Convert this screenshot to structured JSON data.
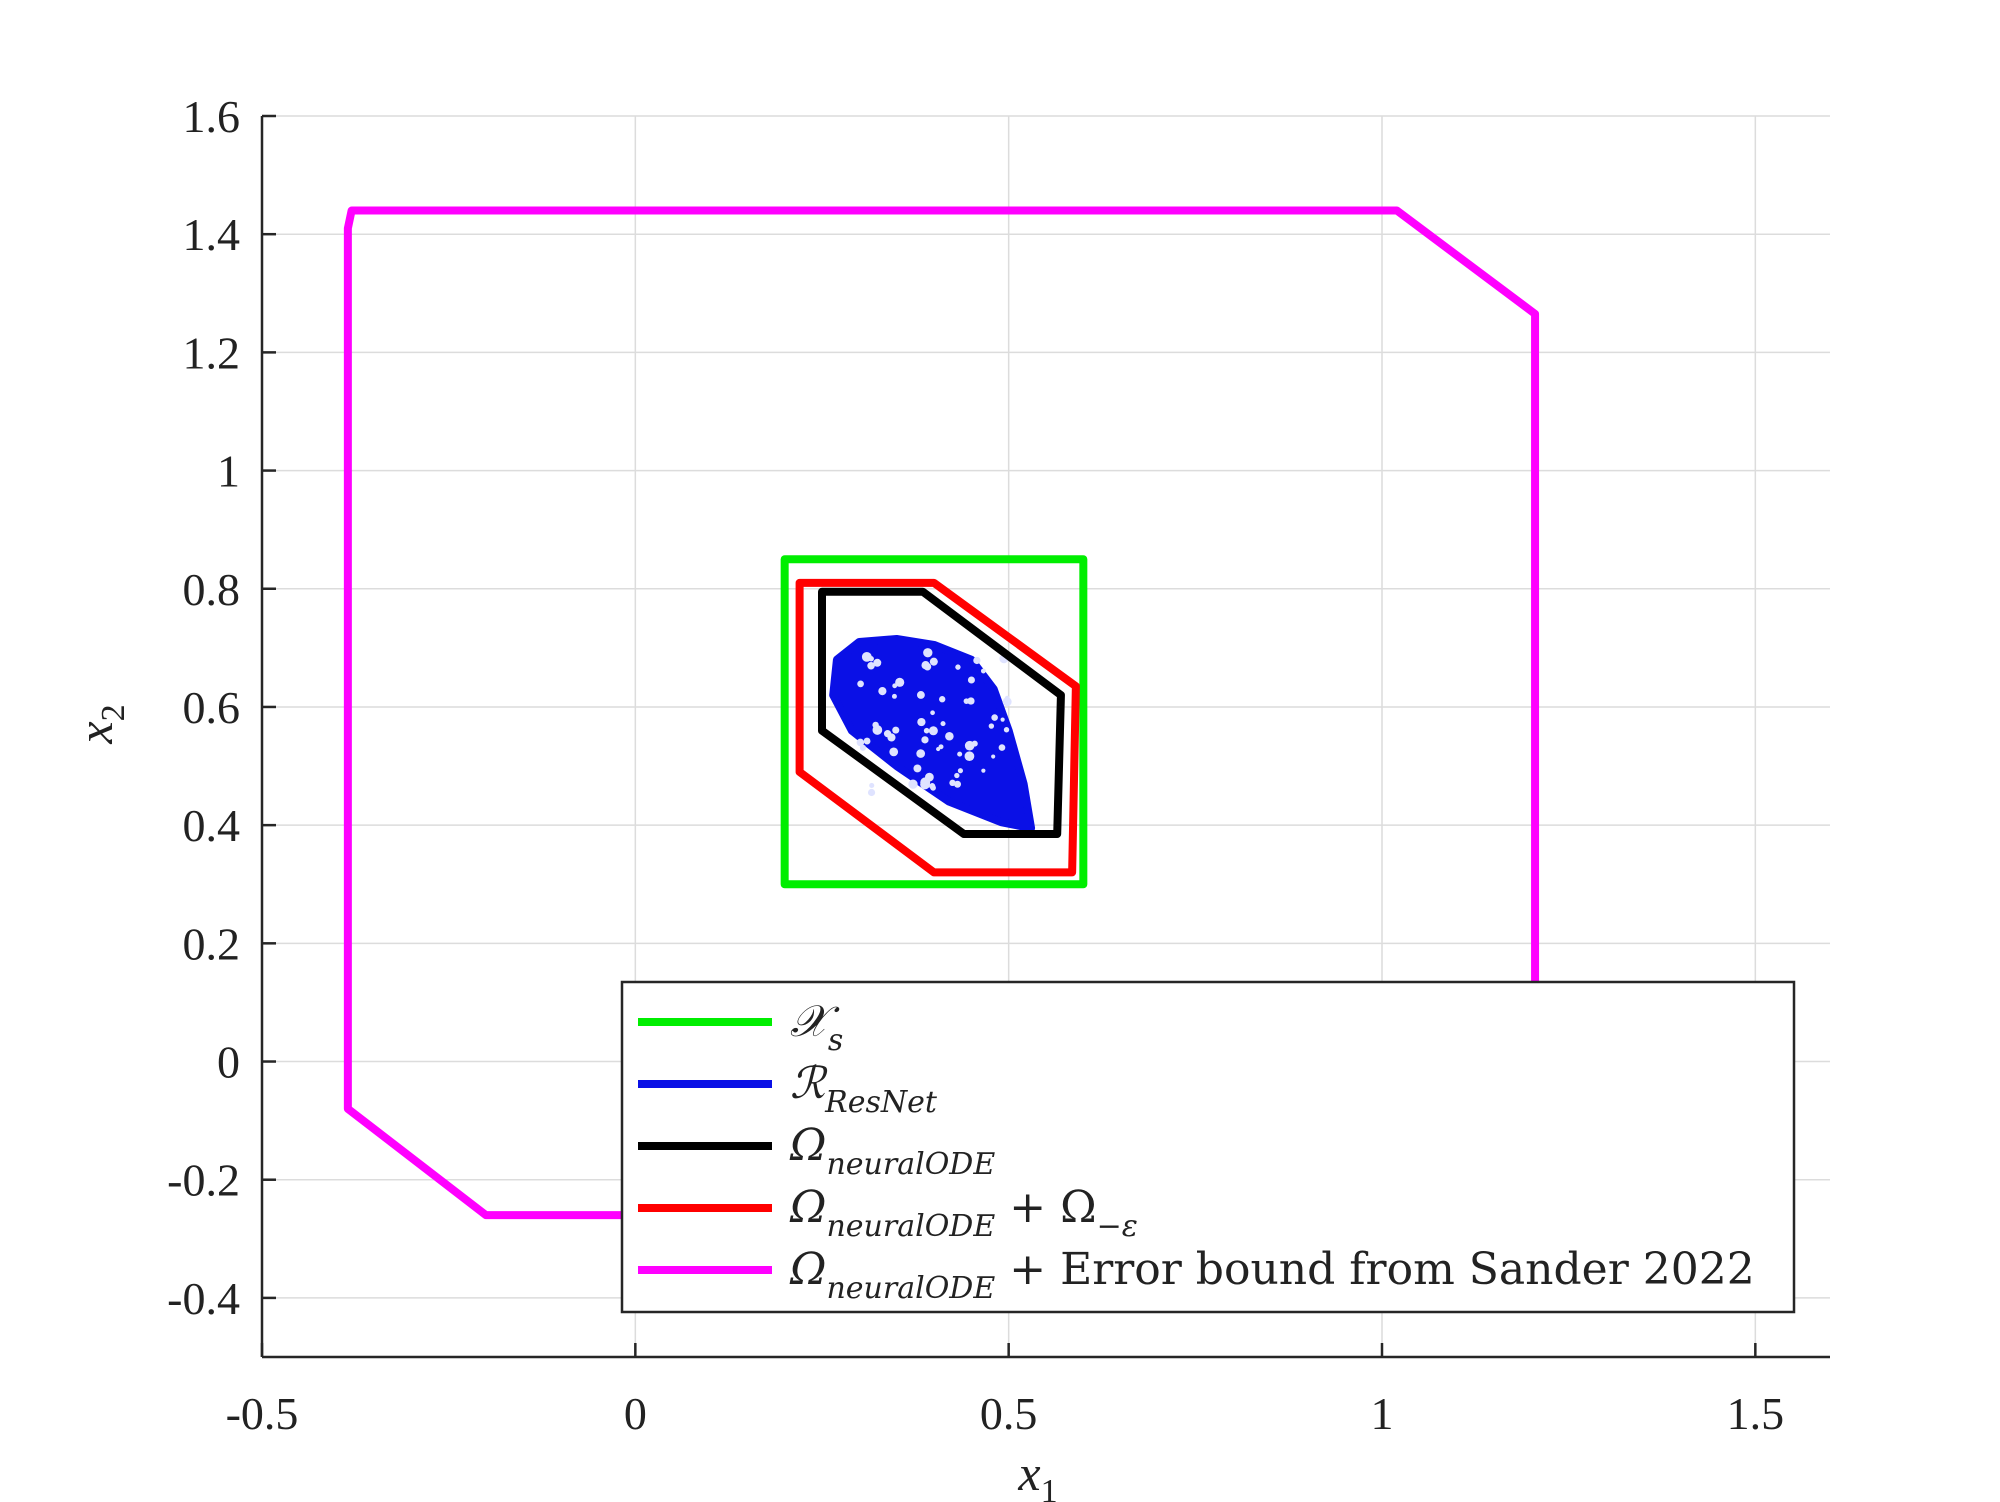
{
  "chart_data": {
    "type": "line",
    "title": "",
    "xlabel": "x",
    "xlabel_sub": "1",
    "ylabel": "x",
    "ylabel_sub": "2",
    "xlim": [
      -0.5,
      1.6
    ],
    "ylim": [
      -0.5,
      1.6
    ],
    "xticks": [
      -0.5,
      0,
      0.5,
      1,
      1.5
    ],
    "xtick_labels": [
      "-0.5",
      "0",
      "0.5",
      "1",
      "1.5"
    ],
    "yticks": [
      -0.4,
      -0.2,
      0,
      0.2,
      0.4,
      0.6,
      0.8,
      1,
      1.2,
      1.4,
      1.6
    ],
    "ytick_labels": [
      "-0.4",
      "-0.2",
      "0",
      "0.2",
      "0.4",
      "0.6",
      "0.8",
      "1",
      "1.2",
      "1.4",
      "1.6"
    ],
    "grid": true,
    "legend_position": "bottom-right",
    "series": [
      {
        "name": "X_s",
        "legend": {
          "main": "𝒳",
          "sub": "s",
          "suffix": ""
        },
        "color": "#00ee00",
        "closed": true,
        "points": [
          [
            0.2,
            0.3
          ],
          [
            0.6,
            0.3
          ],
          [
            0.6,
            0.85
          ],
          [
            0.2,
            0.85
          ]
        ]
      },
      {
        "name": "R_ResNet",
        "legend": {
          "main": "ℛ",
          "sub": "ResNet",
          "suffix": ""
        },
        "color": "#0a10e6",
        "closed": true,
        "filled_scatter": true,
        "points": [
          [
            0.27,
            0.68
          ],
          [
            0.3,
            0.71
          ],
          [
            0.35,
            0.715
          ],
          [
            0.4,
            0.705
          ],
          [
            0.45,
            0.68
          ],
          [
            0.48,
            0.63
          ],
          [
            0.5,
            0.56
          ],
          [
            0.52,
            0.47
          ],
          [
            0.53,
            0.395
          ],
          [
            0.49,
            0.405
          ],
          [
            0.42,
            0.44
          ],
          [
            0.35,
            0.5
          ],
          [
            0.29,
            0.56
          ],
          [
            0.265,
            0.62
          ]
        ]
      },
      {
        "name": "Omega_neuralODE",
        "legend": {
          "main": "Ω",
          "sub": "neuralODE",
          "suffix": ""
        },
        "color": "#000000",
        "closed": true,
        "points": [
          [
            0.25,
            0.795
          ],
          [
            0.385,
            0.795
          ],
          [
            0.57,
            0.62
          ],
          [
            0.565,
            0.385
          ],
          [
            0.44,
            0.385
          ],
          [
            0.25,
            0.56
          ]
        ]
      },
      {
        "name": "Omega_neuralODE + Omega_-eps",
        "legend": {
          "main": "Ω",
          "sub": "neuralODE",
          "suffix": " + Ω",
          "suffix_sub": "−ε"
        },
        "color": "#ff0000",
        "closed": true,
        "points": [
          [
            0.22,
            0.81
          ],
          [
            0.4,
            0.81
          ],
          [
            0.59,
            0.635
          ],
          [
            0.585,
            0.32
          ],
          [
            0.4,
            0.32
          ],
          [
            0.22,
            0.49
          ]
        ]
      },
      {
        "name": "Omega_neuralODE + Error bound from Sander 2022",
        "legend": {
          "main": "Ω",
          "sub": "neuralODE",
          "suffix": " + Error bound from Sander 2022"
        },
        "color": "#ff00ff",
        "closed": true,
        "points": [
          [
            -0.38,
            1.44
          ],
          [
            1.02,
            1.44
          ],
          [
            1.205,
            1.265
          ],
          [
            1.205,
            -0.26
          ],
          [
            -0.2,
            -0.26
          ],
          [
            -0.385,
            -0.08
          ],
          [
            -0.385,
            1.41
          ]
        ]
      }
    ]
  }
}
